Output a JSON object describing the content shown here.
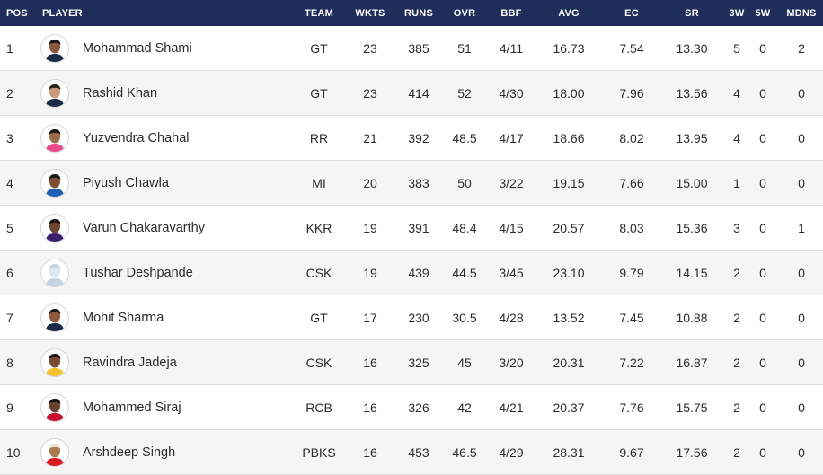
{
  "header": {
    "pos": "POS",
    "player": "PLAYER",
    "team": "TEAM",
    "wkts": "WKTS",
    "runs": "RUNS",
    "ovr": "OVR",
    "bbf": "BBF",
    "avg": "AVG",
    "ec": "EC",
    "sr": "SR",
    "w3": "3W",
    "w5": "5W",
    "mdns": "MDNS"
  },
  "rows": [
    {
      "pos": "1",
      "player": "Mohammad Shami",
      "team": "GT",
      "wkts": "23",
      "runs": "385",
      "ovr": "51",
      "bbf": "4/11",
      "avg": "16.73",
      "ec": "7.54",
      "sr": "13.30",
      "w3": "5",
      "w5": "0",
      "mdns": "2",
      "skin": "#8a5a3c",
      "hair": "#1a1a1a",
      "shirt": "#1c2a4a"
    },
    {
      "pos": "2",
      "player": "Rashid Khan",
      "team": "GT",
      "wkts": "23",
      "runs": "414",
      "ovr": "52",
      "bbf": "4/30",
      "avg": "18.00",
      "ec": "7.96",
      "sr": "13.56",
      "w3": "4",
      "w5": "0",
      "mdns": "0",
      "skin": "#c99a78",
      "hair": "#2a2420",
      "shirt": "#1c2a4a"
    },
    {
      "pos": "3",
      "player": "Yuzvendra Chahal",
      "team": "RR",
      "wkts": "21",
      "runs": "392",
      "ovr": "48.5",
      "bbf": "4/17",
      "avg": "18.66",
      "ec": "8.02",
      "sr": "13.95",
      "w3": "4",
      "w5": "0",
      "mdns": "0",
      "skin": "#9a6a4a",
      "hair": "#1a1a1a",
      "shirt": "#e84a8a"
    },
    {
      "pos": "4",
      "player": "Piyush Chawla",
      "team": "MI",
      "wkts": "20",
      "runs": "383",
      "ovr": "50",
      "bbf": "3/22",
      "avg": "19.15",
      "ec": "7.66",
      "sr": "15.00",
      "w3": "1",
      "w5": "0",
      "mdns": "0",
      "skin": "#7d4e33",
      "hair": "#1a1a1a",
      "shirt": "#1d5fb3"
    },
    {
      "pos": "5",
      "player": "Varun Chakaravarthy",
      "team": "KKR",
      "wkts": "19",
      "runs": "391",
      "ovr": "48.4",
      "bbf": "4/15",
      "avg": "20.57",
      "ec": "8.03",
      "sr": "15.36",
      "w3": "3",
      "w5": "0",
      "mdns": "1",
      "skin": "#6e4430",
      "hair": "#141414",
      "shirt": "#3a2270"
    },
    {
      "pos": "6",
      "player": "Tushar Deshpande",
      "team": "CSK",
      "wkts": "19",
      "runs": "439",
      "ovr": "44.5",
      "bbf": "3/45",
      "avg": "23.10",
      "ec": "9.79",
      "sr": "14.15",
      "w3": "2",
      "w5": "0",
      "mdns": "0",
      "skin": "#dfe6f0",
      "hair": "#c8d3e2",
      "shirt": "#c8d3e2"
    },
    {
      "pos": "7",
      "player": "Mohit Sharma",
      "team": "GT",
      "wkts": "17",
      "runs": "230",
      "ovr": "30.5",
      "bbf": "4/28",
      "avg": "13.52",
      "ec": "7.45",
      "sr": "10.88",
      "w3": "2",
      "w5": "0",
      "mdns": "0",
      "skin": "#8c5a3a",
      "hair": "#1a1a1a",
      "shirt": "#1c2a4a"
    },
    {
      "pos": "8",
      "player": "Ravindra Jadeja",
      "team": "CSK",
      "wkts": "16",
      "runs": "325",
      "ovr": "45",
      "bbf": "3/20",
      "avg": "20.31",
      "ec": "7.22",
      "sr": "16.87",
      "w3": "2",
      "w5": "0",
      "mdns": "0",
      "skin": "#7a4a30",
      "hair": "#141414",
      "shirt": "#f2c230"
    },
    {
      "pos": "9",
      "player": "Mohammed Siraj",
      "team": "RCB",
      "wkts": "16",
      "runs": "326",
      "ovr": "42",
      "bbf": "4/21",
      "avg": "20.37",
      "ec": "7.76",
      "sr": "15.75",
      "w3": "2",
      "w5": "0",
      "mdns": "0",
      "skin": "#6a4230",
      "hair": "#141414",
      "shirt": "#c8102e"
    },
    {
      "pos": "10",
      "player": "Arshdeep Singh",
      "team": "PBKS",
      "wkts": "16",
      "runs": "453",
      "ovr": "46.5",
      "bbf": "4/29",
      "avg": "28.31",
      "ec": "9.67",
      "sr": "17.56",
      "w3": "2",
      "w5": "0",
      "mdns": "0",
      "skin": "#a8784e",
      "hair": "#e8e4e0",
      "shirt": "#d71920"
    }
  ]
}
